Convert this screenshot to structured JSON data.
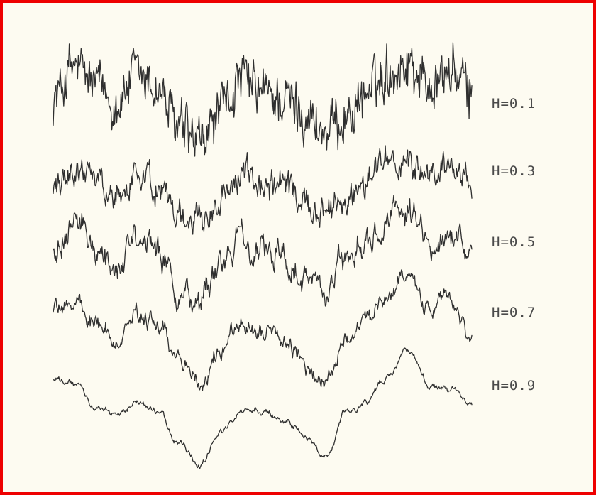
{
  "colors": {
    "frame_border": "#ee0000",
    "background": "#fdfbf1",
    "trace": "#2f2f2f",
    "label": "#4a4a4a"
  },
  "chart_data": {
    "type": "line",
    "description_units": "stacked fractional Brownian motion traces; vertical scale is relative (no axis shown)",
    "grid": false,
    "legend": "labels at right of each trace",
    "x": [
      0,
      0.05,
      0.1,
      0.15,
      0.2,
      0.25,
      0.3,
      0.35,
      0.4,
      0.45,
      0.5,
      0.55,
      0.6,
      0.65,
      0.7,
      0.75,
      0.8,
      0.85,
      0.9,
      0.95,
      1.0
    ],
    "series": [
      {
        "name": "H=0.1",
        "label": "H=0.1",
        "hurst": 0.1,
        "roughness": 1.0,
        "values": [
          0.55,
          0.9,
          0.7,
          0.5,
          0.8,
          0.65,
          0.2,
          0.0,
          0.4,
          0.75,
          0.6,
          0.55,
          0.4,
          0.15,
          0.35,
          0.6,
          0.85,
          0.95,
          0.7,
          0.85,
          0.6
        ]
      },
      {
        "name": "H=0.3",
        "label": "H=0.3",
        "hurst": 0.3,
        "roughness": 0.72,
        "values": [
          0.55,
          0.85,
          0.65,
          0.4,
          0.75,
          0.55,
          0.15,
          0.0,
          0.35,
          0.7,
          0.55,
          0.5,
          0.3,
          0.05,
          0.4,
          0.7,
          0.95,
          0.9,
          0.65,
          0.8,
          0.55
        ]
      },
      {
        "name": "H=0.5",
        "label": "H=0.5",
        "hurst": 0.5,
        "roughness": 0.45,
        "values": [
          0.6,
          0.8,
          0.6,
          0.35,
          0.6,
          0.5,
          0.1,
          0.0,
          0.35,
          0.6,
          0.5,
          0.45,
          0.25,
          0.05,
          0.45,
          0.6,
          0.85,
          0.9,
          0.6,
          0.7,
          0.5
        ]
      },
      {
        "name": "H=0.7",
        "label": "H=0.7",
        "hurst": 0.7,
        "roughness": 0.22,
        "values": [
          0.65,
          0.75,
          0.55,
          0.4,
          0.55,
          0.5,
          0.2,
          0.0,
          0.35,
          0.55,
          0.45,
          0.4,
          0.2,
          0.05,
          0.45,
          0.55,
          0.8,
          0.9,
          0.6,
          0.65,
          0.45
        ]
      },
      {
        "name": "H=0.9",
        "label": "H=0.9",
        "hurst": 0.9,
        "roughness": 0.08,
        "values": [
          0.75,
          0.7,
          0.5,
          0.45,
          0.5,
          0.45,
          0.2,
          0.0,
          0.3,
          0.5,
          0.45,
          0.4,
          0.25,
          0.1,
          0.45,
          0.55,
          0.75,
          0.95,
          0.7,
          0.65,
          0.55
        ]
      }
    ]
  }
}
